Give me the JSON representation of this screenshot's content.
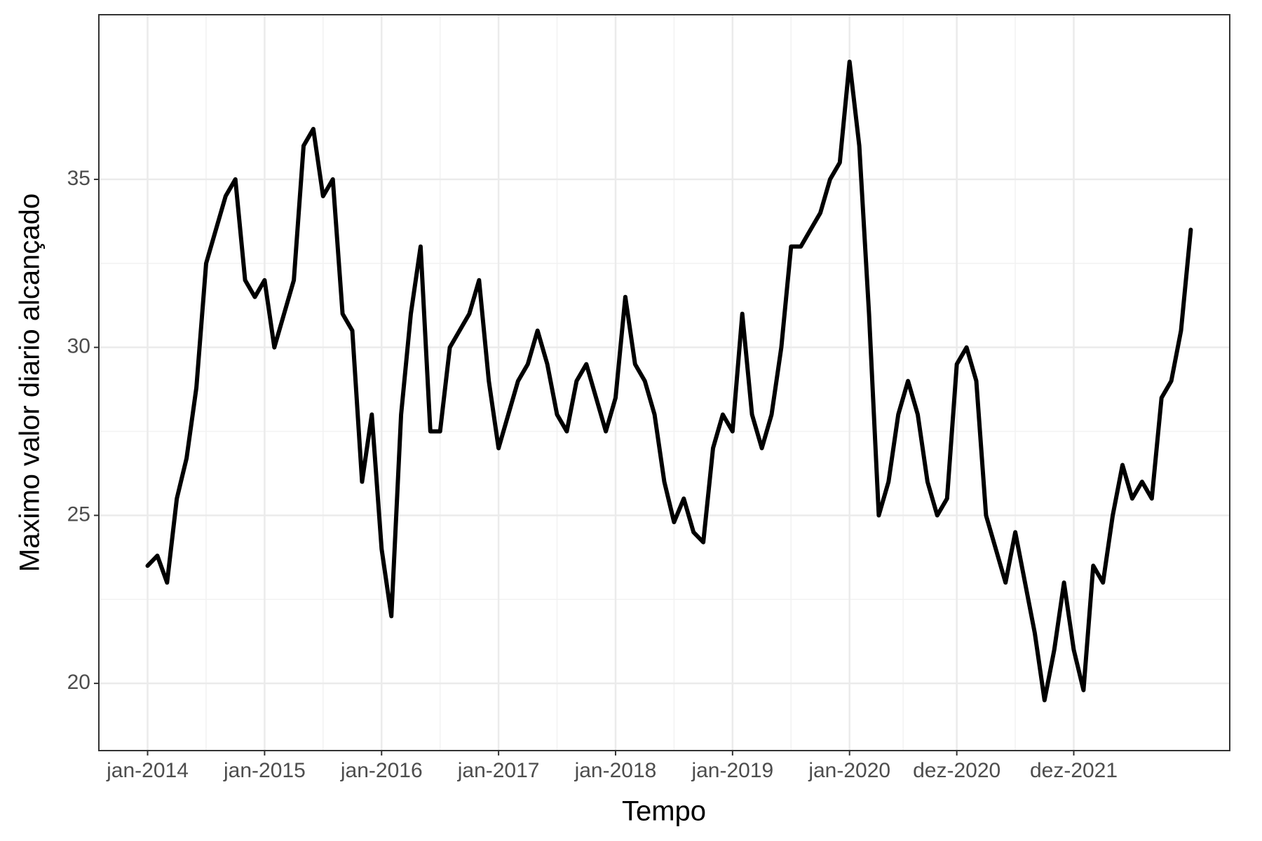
{
  "chart_data": {
    "type": "line",
    "x_label": "Tempo",
    "y_label": "Maximo valor diario alcançado",
    "x": [
      "2014-01",
      "2014-02",
      "2014-03",
      "2014-04",
      "2014-05",
      "2014-06",
      "2014-07",
      "2014-08",
      "2014-09",
      "2014-10",
      "2014-11",
      "2014-12",
      "2015-01",
      "2015-02",
      "2015-03",
      "2015-04",
      "2015-05",
      "2015-06",
      "2015-07",
      "2015-08",
      "2015-09",
      "2015-10",
      "2015-11",
      "2015-12",
      "2016-01",
      "2016-02",
      "2016-03",
      "2016-04",
      "2016-05",
      "2016-06",
      "2016-07",
      "2016-08",
      "2016-09",
      "2016-10",
      "2016-11",
      "2016-12",
      "2017-01",
      "2017-02",
      "2017-03",
      "2017-04",
      "2017-05",
      "2017-06",
      "2017-07",
      "2017-08",
      "2017-09",
      "2017-10",
      "2017-11",
      "2017-12",
      "2018-01",
      "2018-02",
      "2018-03",
      "2018-04",
      "2018-05",
      "2018-06",
      "2018-07",
      "2018-08",
      "2018-09",
      "2018-10",
      "2018-11",
      "2018-12",
      "2019-01",
      "2019-02",
      "2019-03",
      "2019-04",
      "2019-05",
      "2019-06",
      "2019-07",
      "2019-08",
      "2019-09",
      "2019-10",
      "2019-11",
      "2019-12",
      "2020-01",
      "2020-02",
      "2020-03",
      "2020-04",
      "2020-05",
      "2020-06",
      "2020-07",
      "2020-08",
      "2020-09",
      "2020-10",
      "2020-11",
      "2020-12",
      "2021-01",
      "2021-02",
      "2021-03",
      "2021-04",
      "2021-05",
      "2021-06",
      "2021-07",
      "2021-08",
      "2021-09",
      "2021-10",
      "2021-11",
      "2021-12",
      "2022-01",
      "2022-02",
      "2022-03",
      "2022-04",
      "2022-05",
      "2022-06",
      "2022-07",
      "2022-08",
      "2022-09",
      "2022-10",
      "2022-11",
      "2022-12"
    ],
    "series": [
      {
        "color": "#000000",
        "values": [
          23.5,
          23.8,
          23.0,
          25.5,
          26.7,
          28.8,
          32.5,
          33.5,
          34.5,
          35.0,
          32.0,
          31.5,
          32,
          30,
          31,
          32,
          36,
          36.5,
          34.5,
          35,
          31,
          30.5,
          26,
          28,
          24,
          22,
          28,
          31,
          33,
          27.5,
          27.5,
          30,
          30.5,
          31,
          32,
          29,
          27,
          28,
          29,
          29.5,
          30.5,
          29.5,
          28,
          27.5,
          29,
          29.5,
          28.5,
          27.5,
          28.5,
          31.5,
          29.5,
          29,
          28,
          26,
          24.8,
          25.5,
          24.5,
          24.2,
          27,
          28,
          27.5,
          31,
          28,
          27,
          28,
          30,
          33,
          33,
          33.5,
          34,
          35,
          35.5,
          38.5,
          36,
          31,
          25,
          26,
          28,
          29,
          28,
          26,
          25,
          25.5,
          29.5,
          30,
          29,
          25,
          24,
          23,
          24.5,
          23,
          21.5,
          19.5,
          21,
          23,
          21,
          19.8,
          23.5,
          23,
          25,
          26.5,
          25.5,
          26,
          25.5,
          28.5,
          29,
          30.5,
          33.5
        ]
      }
    ],
    "xlim": [
      "2013-08",
      "2023-04"
    ],
    "xticks": [
      {
        "value": "2014-01",
        "label": "jan-2014"
      },
      {
        "value": "2015-01",
        "label": "jan-2015"
      },
      {
        "value": "2016-01",
        "label": "jan-2016"
      },
      {
        "value": "2017-01",
        "label": "jan-2017"
      },
      {
        "value": "2018-01",
        "label": "jan-2018"
      },
      {
        "value": "2019-01",
        "label": "jan-2019"
      },
      {
        "value": "2020-01",
        "label": "jan-2020"
      },
      {
        "value": "2020-12",
        "label": "dez-2020"
      },
      {
        "value": "2021-12",
        "label": "dez-2021"
      }
    ],
    "ylim": [
      18,
      39.9
    ],
    "yticks": [
      20,
      25,
      30,
      35
    ],
    "grid": true
  }
}
